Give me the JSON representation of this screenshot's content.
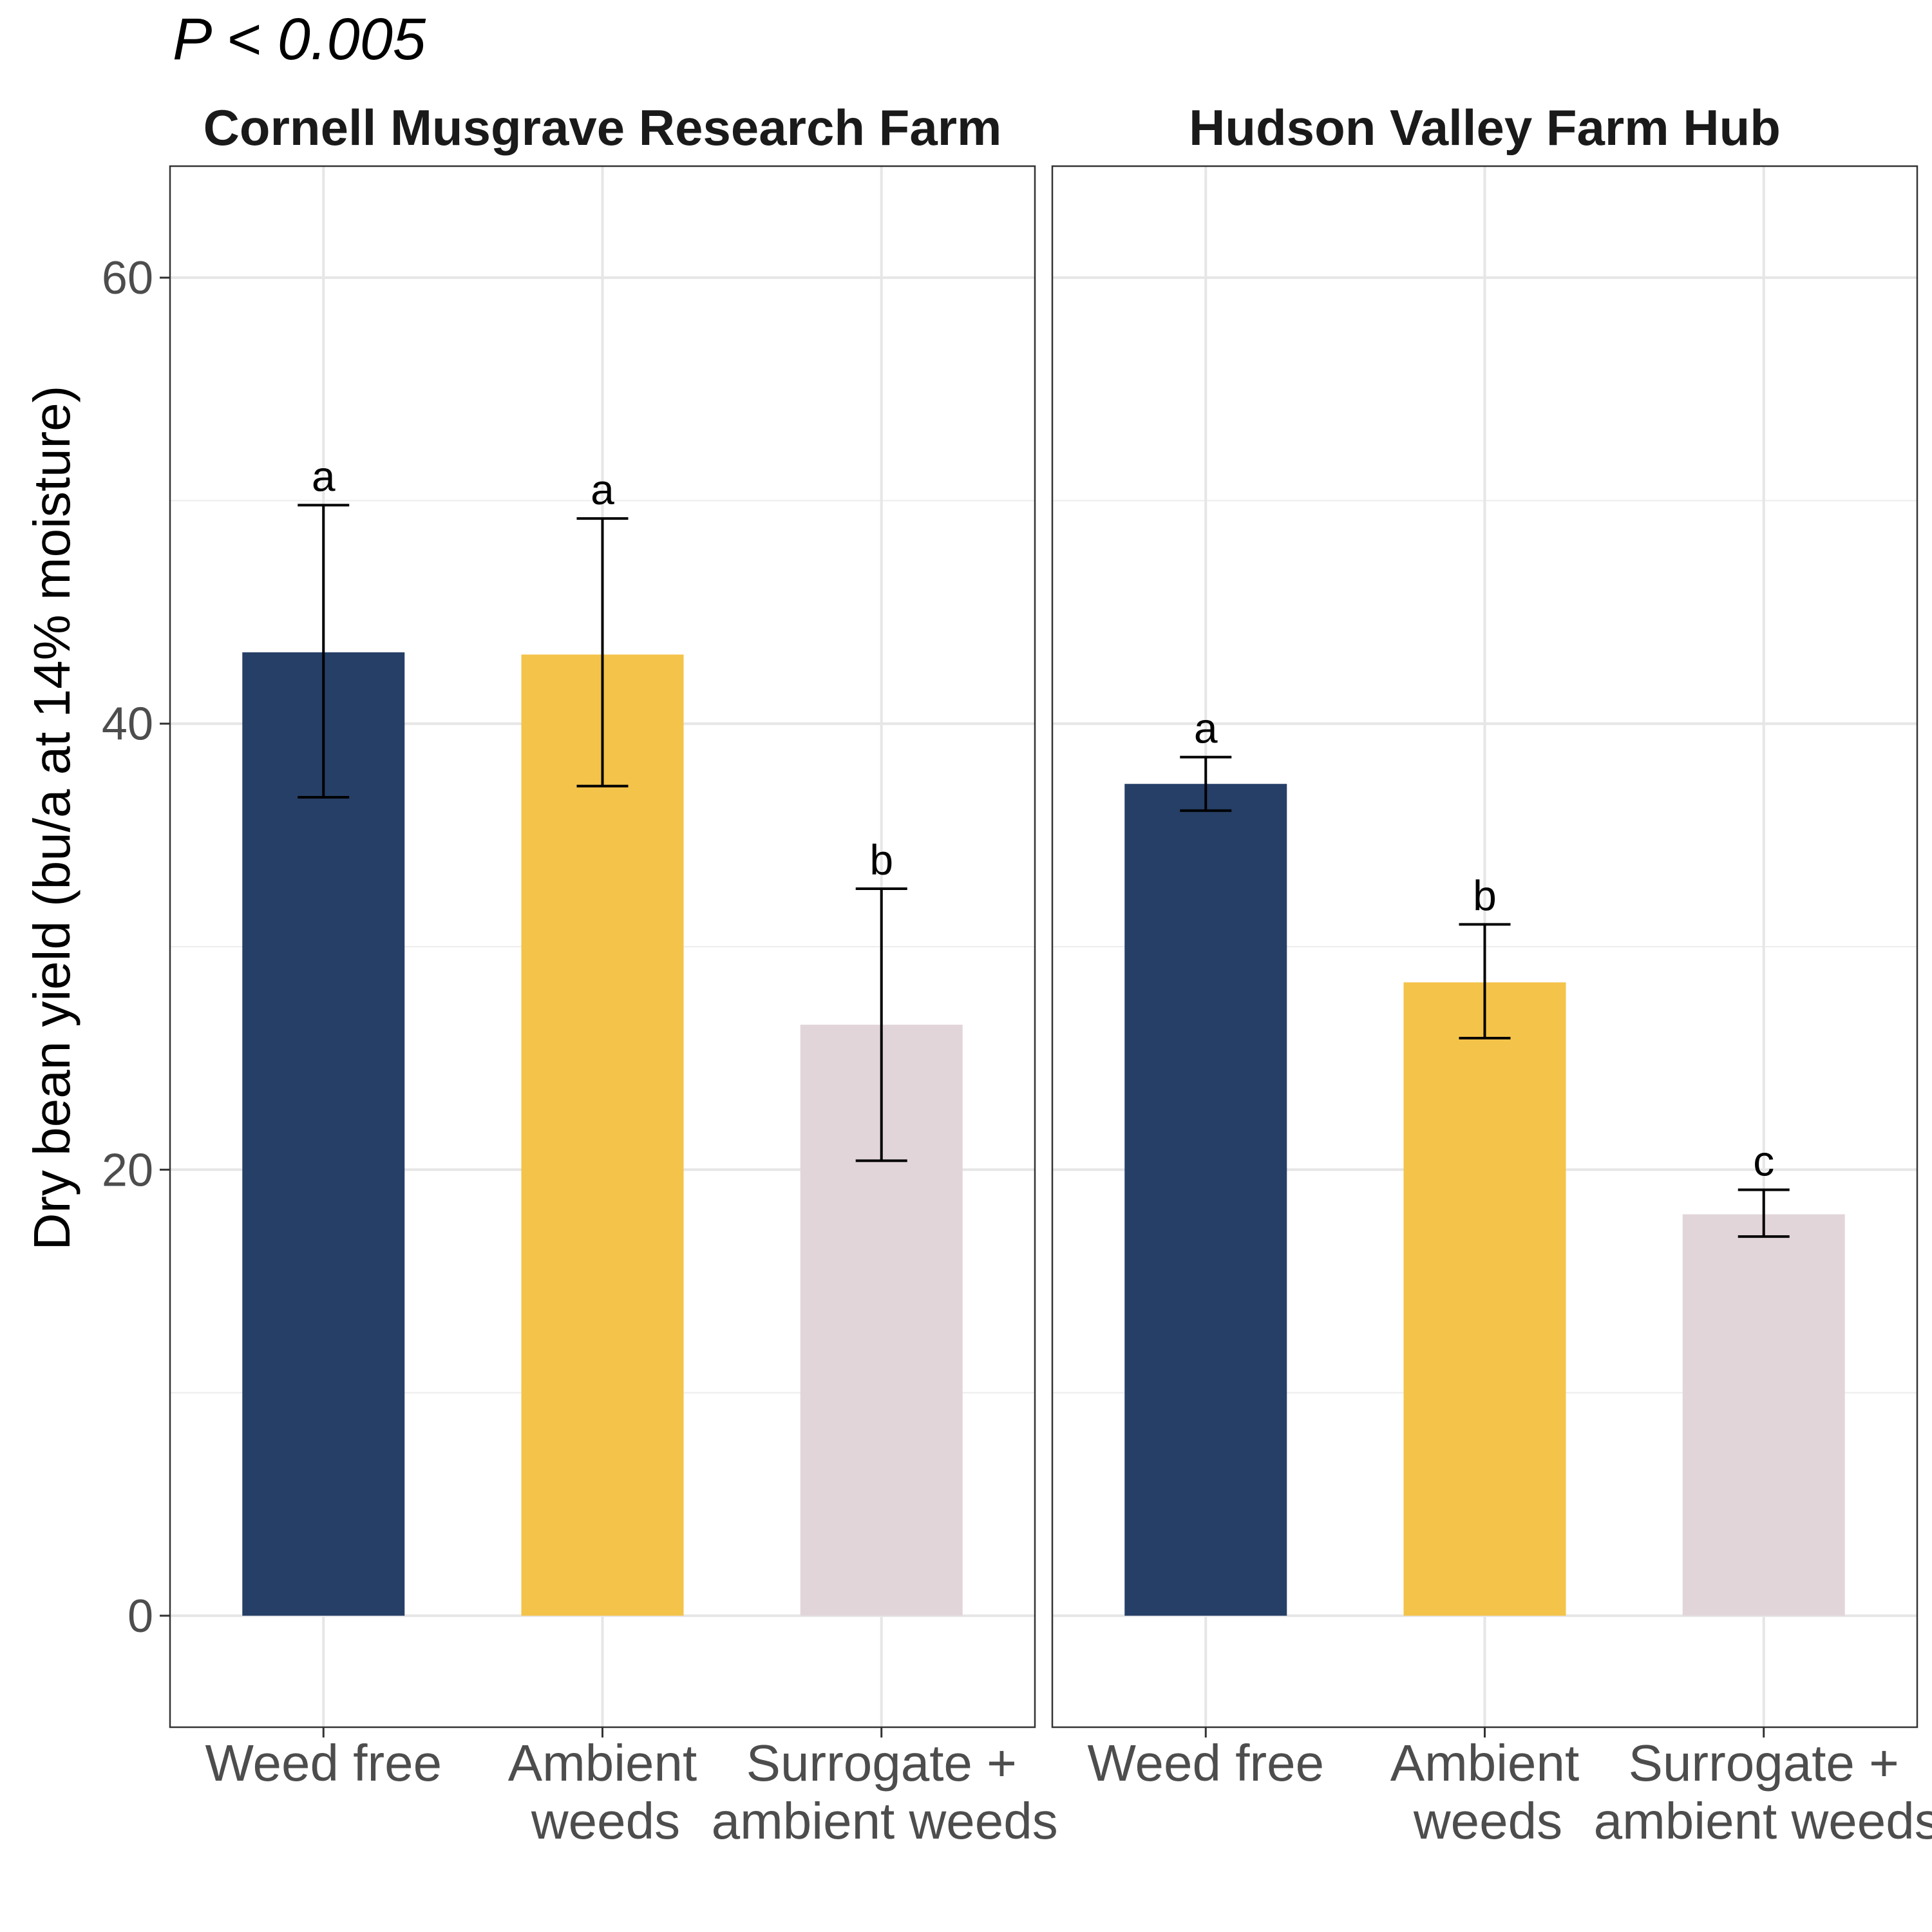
{
  "p_value": "P < 0.005",
  "chart_data": {
    "type": "bar",
    "ylabel": "Dry bean yield (bu/a at 14% moisture)",
    "ylim": [
      -5,
      65
    ],
    "yticks": [
      0,
      20,
      40,
      60
    ],
    "grid": true,
    "colors": {
      "Weed free": "#263f66",
      "Ambient weeds": "#f4c34a",
      "Surrogate + ambient weeds": "#e2d5da"
    },
    "categories": [
      "Weed free",
      "Ambient weeds",
      "Surrogate + ambient weeds"
    ],
    "category_lines": [
      [
        "Weed free"
      ],
      [
        "Ambient",
        "weeds"
      ],
      [
        "Surrogate +",
        "ambient weeds"
      ]
    ],
    "panels": [
      {
        "title": "Cornell Musgrave Research Farm",
        "values": [
          43.2,
          43.1,
          26.5
        ],
        "error_low": [
          36.7,
          37.2,
          20.4
        ],
        "error_high": [
          49.8,
          49.2,
          32.6
        ],
        "letters": [
          "a",
          "a",
          "b"
        ]
      },
      {
        "title": "Hudson Valley Farm Hub",
        "values": [
          37.3,
          28.4,
          18.0
        ],
        "error_low": [
          36.1,
          25.9,
          17.0
        ],
        "error_high": [
          38.5,
          31.0,
          19.1
        ],
        "letters": [
          "a",
          "b",
          "c"
        ]
      }
    ]
  }
}
